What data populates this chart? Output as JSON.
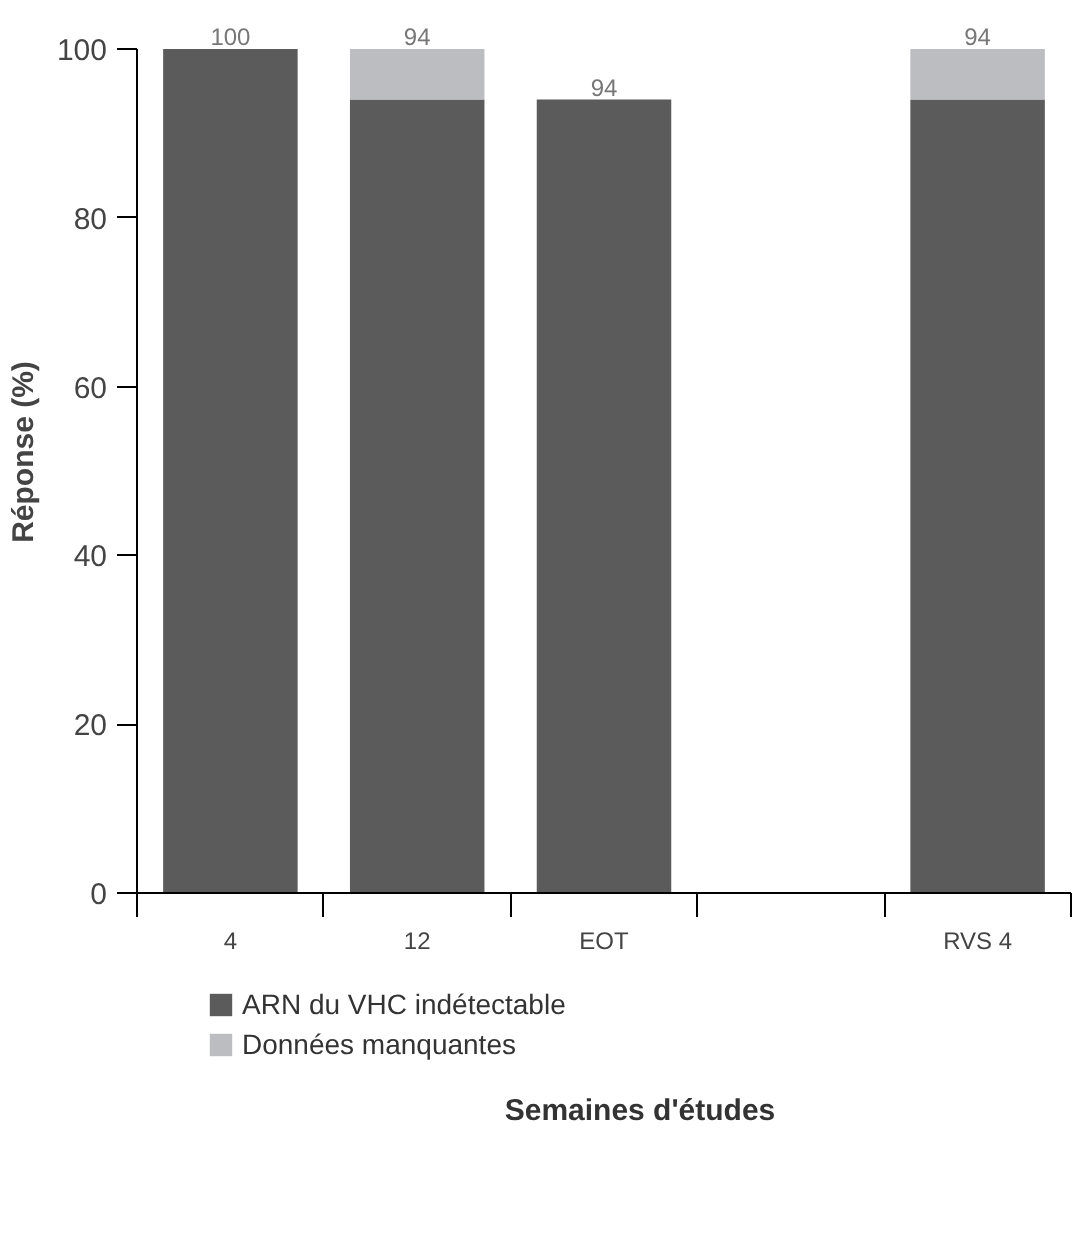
{
  "chart_data": {
    "type": "bar",
    "stacked": true,
    "categories": [
      "4",
      "12",
      "EOT",
      null,
      "RVS 4"
    ],
    "series": [
      {
        "name": "ARN du VHC indétectable",
        "color": "#5b5b5b",
        "values": [
          100,
          94,
          94,
          null,
          94
        ],
        "value_labels": [
          "100",
          "94",
          "94",
          null,
          "94"
        ]
      },
      {
        "name": "Données manquantes",
        "color": "#bcbdc0",
        "values": [
          0,
          6,
          0,
          null,
          6
        ]
      }
    ],
    "ylabel": "Réponse (%)",
    "xlabel": "Semaines d'études",
    "ylim": [
      0,
      100
    ],
    "yticks": [
      0,
      20,
      40,
      60,
      80,
      100
    ],
    "grid": false,
    "legend": "bottom left"
  }
}
